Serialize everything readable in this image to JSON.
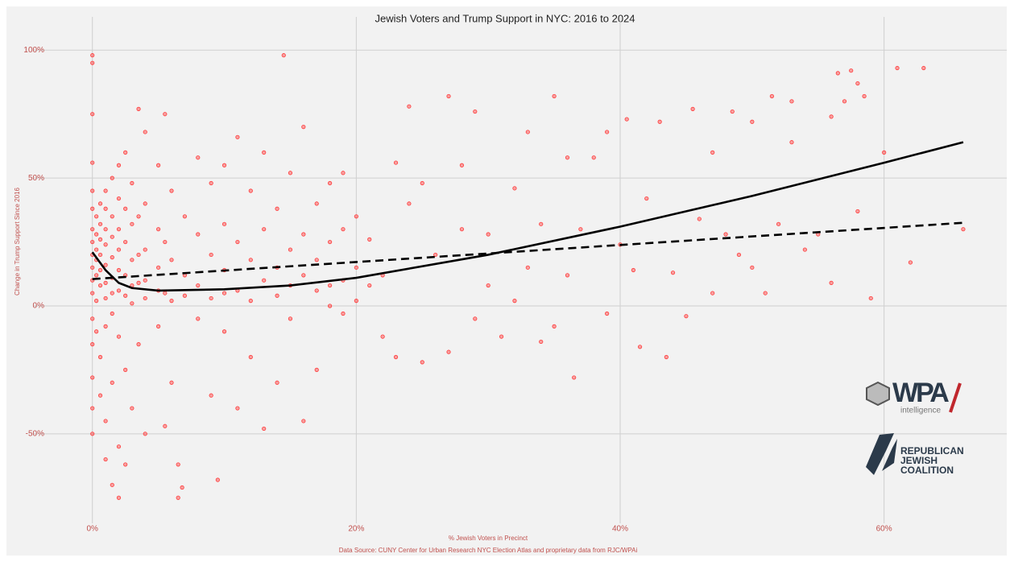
{
  "chart_data": {
    "type": "scatter",
    "title": "Jewish Voters and Trump Support in NYC: 2016 to 2024",
    "xlabel": "% Jewish Voters in Precinct",
    "ylabel": "Change in Trump Support Since 2016",
    "source": "Data Source: CUNY Center for Urban Research NYC Election Atlas and proprietary data from RJC/WPAi",
    "color": "#ff3b3b",
    "grid": true,
    "xlim": [
      -4.5,
      69.3
    ],
    "ylim": [
      -85,
      113
    ],
    "xticks": [
      {
        "value": 0,
        "label": "0%"
      },
      {
        "value": 20,
        "label": "20%"
      },
      {
        "value": 40,
        "label": "40%"
      },
      {
        "value": 60,
        "label": "60%"
      }
    ],
    "yticks": [
      {
        "value": -50,
        "label": "-50%"
      },
      {
        "value": 0,
        "label": "0%"
      },
      {
        "value": 50,
        "label": "50%"
      },
      {
        "value": 100,
        "label": "100%"
      }
    ],
    "x": [
      0,
      0,
      0,
      0,
      0,
      0,
      0,
      0,
      0,
      0,
      0,
      0,
      0,
      0,
      0,
      0,
      0,
      0.3,
      0.3,
      0.3,
      0.3,
      0.3,
      0.3,
      0.3,
      0.6,
      0.6,
      0.6,
      0.6,
      0.6,
      0.6,
      0.6,
      0.6,
      1,
      1,
      1,
      1,
      1,
      1,
      1,
      1,
      1,
      1,
      1.5,
      1.5,
      1.5,
      1.5,
      1.5,
      1.5,
      1.5,
      1.5,
      1.5,
      2,
      2,
      2,
      2,
      2,
      2,
      2,
      2,
      2,
      2.5,
      2.5,
      2.5,
      2.5,
      2.5,
      2.5,
      2.5,
      3,
      3,
      3,
      3,
      3,
      3,
      3.5,
      3.5,
      3.5,
      3.5,
      3.5,
      4,
      4,
      4,
      4,
      4,
      4,
      5,
      5,
      5,
      5,
      5,
      5.5,
      5.5,
      5.5,
      5.5,
      6,
      6,
      6,
      6,
      6.5,
      6.5,
      6.8,
      7,
      7,
      7,
      8,
      8,
      8,
      8,
      9,
      9,
      9,
      9,
      9.5,
      10,
      10,
      10,
      10,
      10,
      11,
      11,
      11,
      11,
      12,
      12,
      12,
      12,
      13,
      13,
      13,
      13,
      14,
      14,
      14,
      14,
      14.5,
      15,
      15,
      15,
      15,
      16,
      16,
      16,
      16,
      17,
      17,
      17,
      17,
      18,
      18,
      18,
      18,
      19,
      19,
      19,
      19,
      20,
      20,
      20,
      21,
      21,
      22,
      22,
      23,
      23,
      24,
      24,
      25,
      25,
      26,
      27,
      27,
      28,
      28,
      29,
      29,
      30,
      30,
      31,
      32,
      32,
      33,
      33,
      34,
      34,
      35,
      35,
      36,
      36,
      36.5,
      37,
      38,
      39,
      39,
      40,
      40.5,
      41,
      41.5,
      42,
      43,
      43.5,
      44,
      45,
      45.5,
      46,
      47,
      47,
      48,
      48.5,
      49,
      50,
      50,
      51,
      51.5,
      52,
      53,
      53,
      54,
      55,
      56,
      56,
      56.5,
      57,
      57.5,
      58,
      58,
      58.5,
      59,
      60,
      61,
      62,
      63,
      66
    ],
    "values": [
      98,
      95,
      75,
      56,
      45,
      38,
      30,
      25,
      20,
      15,
      10,
      5,
      -5,
      -15,
      -28,
      -40,
      -50,
      35,
      28,
      22,
      18,
      12,
      2,
      -10,
      40,
      32,
      26,
      20,
      14,
      8,
      -20,
      -35,
      45,
      38,
      30,
      24,
      16,
      9,
      3,
      -8,
      -45,
      -60,
      50,
      35,
      27,
      19,
      11,
      5,
      -3,
      -30,
      -70,
      55,
      42,
      30,
      22,
      14,
      6,
      -12,
      -55,
      -75,
      60,
      38,
      25,
      12,
      4,
      -25,
      -62,
      48,
      32,
      18,
      8,
      1,
      -40,
      77,
      35,
      20,
      9,
      -15,
      68,
      40,
      22,
      10,
      3,
      -50,
      55,
      30,
      15,
      6,
      -8,
      75,
      25,
      5,
      -47,
      45,
      18,
      2,
      -30,
      -62,
      -75,
      -71,
      35,
      12,
      4,
      58,
      28,
      8,
      -5,
      48,
      20,
      3,
      -35,
      -68,
      55,
      32,
      14,
      5,
      -10,
      66,
      25,
      6,
      -40,
      45,
      18,
      2,
      -20,
      60,
      30,
      10,
      -48,
      38,
      15,
      4,
      -30,
      98,
      52,
      22,
      8,
      -5,
      70,
      28,
      12,
      -45,
      40,
      18,
      6,
      -25,
      48,
      25,
      8,
      0,
      52,
      30,
      10,
      -3,
      35,
      15,
      2,
      26,
      8,
      -12,
      12,
      56,
      -20,
      78,
      40,
      48,
      -22,
      20,
      82,
      -18,
      55,
      30,
      76,
      -5,
      28,
      8,
      -12,
      46,
      2,
      68,
      15,
      -14,
      32,
      82,
      -8,
      58,
      12,
      -28,
      30,
      58,
      68,
      -3,
      24,
      73,
      14,
      -16,
      42,
      72,
      -20,
      13,
      -4,
      77,
      34,
      60,
      5,
      28,
      76,
      20,
      72,
      15,
      5,
      82,
      32,
      80,
      64,
      22,
      28,
      74,
      9,
      91,
      80,
      92,
      87,
      37,
      82,
      3,
      60,
      93,
      17,
      93,
      30
    ],
    "lines": [
      {
        "style": "solid",
        "color": "#000000",
        "x": [
          0,
          1,
          2,
          3,
          5,
          10,
          15,
          20,
          30,
          40,
          50,
          60,
          66
        ],
        "values": [
          21,
          14,
          9,
          7,
          6,
          6.5,
          8,
          11,
          20,
          31,
          43,
          56,
          64
        ]
      },
      {
        "style": "dashed",
        "color": "#000000",
        "x": [
          0,
          66
        ],
        "values": [
          10.5,
          32.5
        ]
      }
    ]
  },
  "logos": {
    "wpa": "WPA",
    "wpa_sub": "intelligence",
    "rjc": [
      "REPUBLICAN",
      "JEWISH",
      "COALITION"
    ]
  }
}
